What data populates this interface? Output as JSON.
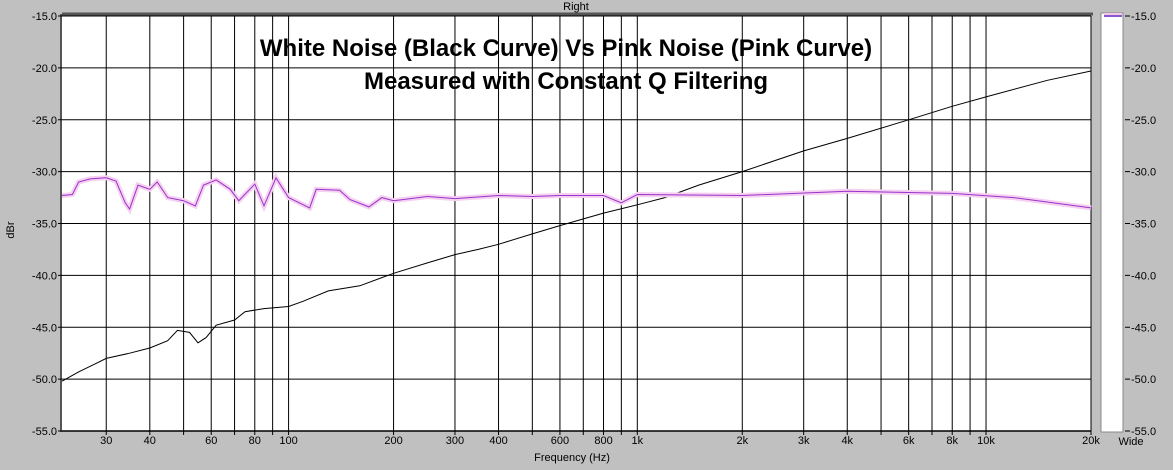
{
  "chart_data": {
    "type": "line",
    "window_title": "Right",
    "title": [
      "White Noise (Black Curve) Vs Pink Noise (Pink Curve)",
      "Measured with Constant Q Filtering"
    ],
    "xlabel": "Frequency (Hz)",
    "ylabel": "dBr",
    "xscale": "log",
    "xlim": [
      22.4,
      20000
    ],
    "ylim": [
      -55,
      -15
    ],
    "grid": true,
    "yticks": [
      -15,
      -20,
      -25,
      -30,
      -35,
      -40,
      -45,
      -50,
      -55
    ],
    "ytick_labels": [
      "-15.0",
      "-20.0",
      "-25.0",
      "-30.0",
      "-35.0",
      "-40.0",
      "-45.0",
      "-50.0",
      "-55.0"
    ],
    "xgrid": [
      30,
      40,
      50,
      60,
      70,
      80,
      90,
      100,
      200,
      300,
      400,
      500,
      600,
      700,
      800,
      900,
      1000,
      2000,
      3000,
      4000,
      5000,
      6000,
      7000,
      8000,
      9000,
      10000,
      20000
    ],
    "xticks": [
      30,
      40,
      60,
      80,
      100,
      200,
      300,
      400,
      600,
      800,
      1000,
      2000,
      3000,
      4000,
      6000,
      8000,
      10000,
      20000
    ],
    "xtick_labels": [
      "30",
      "40",
      "60",
      "80",
      "100",
      "200",
      "300",
      "400",
      "600",
      "800",
      "1k",
      "2k",
      "3k",
      "4k",
      "6k",
      "8k",
      "10k",
      "20k"
    ],
    "bandwidth_label": "Wide",
    "series": [
      {
        "name": "White Noise",
        "color": "#000000",
        "x": [
          22.4,
          25,
          28,
          30,
          35,
          40,
          45,
          48,
          52,
          55,
          58,
          62,
          70,
          75,
          85,
          100,
          110,
          130,
          160,
          200,
          250,
          300,
          350,
          400,
          500,
          600,
          800,
          1000,
          1200,
          1500,
          2000,
          3000,
          4000,
          6000,
          8000,
          10000,
          15000,
          20000
        ],
        "y": [
          -50.2,
          -49.3,
          -48.5,
          -48.0,
          -47.5,
          -47.0,
          -46.3,
          -45.3,
          -45.5,
          -46.5,
          -46.0,
          -44.8,
          -44.3,
          -43.5,
          -43.2,
          -43.0,
          -42.5,
          -41.5,
          -41.0,
          -39.8,
          -38.8,
          -38.0,
          -37.5,
          -37.0,
          -36.0,
          -35.2,
          -34.0,
          -33.2,
          -32.5,
          -31.3,
          -30.0,
          -28.0,
          -26.8,
          -25.0,
          -23.7,
          -22.8,
          -21.2,
          -20.3
        ]
      },
      {
        "name": "Pink Noise",
        "color": "#9933cc",
        "x": [
          22.4,
          24,
          25,
          27,
          30,
          32,
          34,
          35,
          37,
          40,
          42,
          45,
          50,
          54,
          57,
          62,
          68,
          72,
          80,
          85,
          92,
          100,
          115,
          120,
          140,
          150,
          170,
          185,
          200,
          250,
          300,
          400,
          500,
          600,
          800,
          900,
          1000,
          2000,
          4000,
          8000,
          12000,
          20000
        ],
        "y": [
          -32.3,
          -32.2,
          -31.0,
          -30.7,
          -30.6,
          -30.9,
          -33.0,
          -33.6,
          -31.3,
          -31.7,
          -31.0,
          -32.5,
          -32.8,
          -33.3,
          -31.3,
          -30.8,
          -31.7,
          -32.8,
          -31.2,
          -33.3,
          -30.6,
          -32.5,
          -33.5,
          -31.7,
          -31.8,
          -32.7,
          -33.4,
          -32.5,
          -32.8,
          -32.4,
          -32.6,
          -32.3,
          -32.4,
          -32.3,
          -32.3,
          -33.0,
          -32.2,
          -32.3,
          -31.9,
          -32.1,
          -32.5,
          -33.5
        ]
      }
    ]
  }
}
